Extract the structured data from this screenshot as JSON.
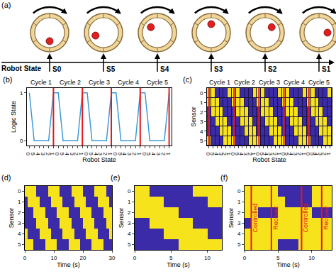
{
  "panel_a": {
    "panel": "(a)",
    "states": [
      "S0",
      "S5",
      "S4",
      "S3",
      "S2",
      "S1"
    ],
    "axis_label": "Robot State"
  },
  "chart_data": [
    {
      "panel": "(b)",
      "type": "line",
      "categories": [
        "0",
        "5",
        "4",
        "3",
        "2",
        "1",
        "0",
        "5",
        "4",
        "3",
        "2",
        "1",
        "0",
        "5",
        "4",
        "3",
        "2",
        "1",
        "0",
        "5",
        "4",
        "3",
        "2",
        "1",
        "0",
        "5",
        "4",
        "3",
        "2",
        "1"
      ],
      "values": [
        1,
        0,
        0,
        0,
        0,
        1,
        1,
        0,
        0,
        0,
        0,
        1,
        1,
        0,
        0,
        0,
        0,
        1,
        1,
        0,
        0,
        0,
        0,
        1,
        1,
        0,
        0,
        0,
        0,
        1
      ],
      "color": "#3d9bd8",
      "ylim": [
        -0.1,
        1.1
      ],
      "yticks": [
        0,
        1
      ],
      "x_label": "Robot State",
      "y_label": "Logic State",
      "annotations": [
        "Cycle 1",
        "Cycle 2",
        "Cycle 3",
        "Cycle 4",
        "Cycle 5"
      ],
      "vlines": [
        5,
        11,
        17,
        23,
        29
      ]
    },
    {
      "panel": "(c)",
      "type": "heatmap",
      "categories": [
        "0",
        "5",
        "4",
        "3",
        "2",
        "1",
        "0",
        "5",
        "4",
        "3",
        "2",
        "1",
        "0",
        "5",
        "4",
        "3",
        "2",
        "1",
        "0",
        "5",
        "4",
        "3",
        "2",
        "1",
        "0",
        "5",
        "4",
        "3",
        "2",
        "1"
      ],
      "y": [
        0,
        1,
        2,
        3,
        4,
        5
      ],
      "ylim": [
        5.5,
        -0.5
      ],
      "yticks": [
        0,
        1,
        2,
        3,
        4,
        5
      ],
      "z": [
        [
          1,
          1,
          0,
          0,
          0,
          1,
          1,
          1,
          0,
          0,
          0,
          1,
          1,
          1,
          0,
          0,
          0,
          1,
          1,
          1,
          0,
          0,
          0,
          1,
          1,
          1,
          0,
          0,
          0,
          1
        ],
        [
          1,
          1,
          1,
          0,
          0,
          0,
          1,
          1,
          1,
          0,
          0,
          0,
          1,
          1,
          1,
          0,
          0,
          0,
          1,
          1,
          1,
          0,
          0,
          0,
          1,
          1,
          1,
          0,
          0,
          0
        ],
        [
          0,
          1,
          1,
          1,
          0,
          0,
          0,
          1,
          1,
          1,
          0,
          0,
          0,
          1,
          1,
          1,
          0,
          0,
          0,
          1,
          1,
          1,
          0,
          0,
          0,
          1,
          1,
          1,
          0,
          0
        ],
        [
          0,
          0,
          1,
          1,
          1,
          0,
          0,
          0,
          1,
          1,
          1,
          0,
          0,
          0,
          1,
          1,
          1,
          0,
          0,
          0,
          1,
          1,
          1,
          0,
          0,
          0,
          1,
          1,
          1,
          0
        ],
        [
          0,
          0,
          0,
          1,
          1,
          1,
          0,
          0,
          0,
          1,
          1,
          1,
          0,
          0,
          0,
          1,
          1,
          1,
          0,
          0,
          0,
          1,
          1,
          1,
          0,
          0,
          0,
          1,
          1,
          1
        ],
        [
          1,
          0,
          0,
          0,
          1,
          1,
          1,
          0,
          0,
          0,
          1,
          1,
          1,
          0,
          0,
          0,
          1,
          1,
          1,
          0,
          0,
          0,
          1,
          1,
          1,
          0,
          0,
          0,
          1,
          1
        ]
      ],
      "zlim": [
        0,
        1
      ],
      "x_label": "Robot State",
      "y_label": "Sensor",
      "annotations": [
        "Cycle 1",
        "Cycle 2",
        "Cycle 3",
        "Cycle 4",
        "Cycle 5"
      ],
      "vlines": [
        0,
        6,
        12,
        18,
        24
      ]
    },
    {
      "panel": "(d)",
      "type": "heatmap",
      "x": [
        0.5,
        1.5,
        2.5,
        3.5,
        4.5,
        5.5,
        6.5,
        7.5,
        8.5,
        9.5,
        10.5,
        11.5,
        12.5,
        13.5,
        14.5,
        15.5,
        16.5,
        17.5,
        18.5,
        19.5,
        20.5,
        21.5,
        22.5,
        23.5,
        24.5,
        25.5,
        26.5,
        27.5,
        28.5,
        29.5
      ],
      "xlim": [
        0,
        30
      ],
      "xticks": [
        0,
        10,
        20,
        30
      ],
      "y": [
        0,
        1,
        2,
        3,
        4,
        5
      ],
      "ylim": [
        5.5,
        -0.5
      ],
      "yticks": [
        0,
        1,
        2,
        3,
        4,
        5
      ],
      "z": [
        [
          1,
          1,
          1,
          1,
          0,
          0,
          0,
          0,
          1,
          1,
          1,
          1,
          0,
          0,
          0,
          0,
          1,
          1,
          1,
          1,
          0,
          0,
          0,
          0,
          1,
          1,
          1,
          1,
          0,
          0
        ],
        [
          0,
          1,
          1,
          1,
          1,
          0,
          0,
          0,
          0,
          1,
          1,
          1,
          1,
          0,
          0,
          0,
          0,
          1,
          1,
          1,
          1,
          0,
          0,
          0,
          0,
          1,
          1,
          1,
          1,
          0
        ],
        [
          0,
          0,
          0,
          1,
          1,
          1,
          1,
          0,
          0,
          0,
          0,
          1,
          1,
          1,
          1,
          0,
          0,
          0,
          0,
          1,
          1,
          1,
          1,
          0,
          0,
          0,
          0,
          1,
          1,
          1
        ],
        [
          0,
          0,
          0,
          0,
          1,
          1,
          1,
          1,
          0,
          0,
          0,
          0,
          1,
          1,
          1,
          1,
          0,
          0,
          0,
          0,
          1,
          1,
          1,
          1,
          0,
          0,
          0,
          0,
          1,
          1
        ],
        [
          1,
          0,
          0,
          0,
          0,
          1,
          1,
          1,
          1,
          0,
          0,
          0,
          0,
          1,
          1,
          1,
          1,
          0,
          0,
          0,
          0,
          1,
          1,
          1,
          1,
          0,
          0,
          0,
          0,
          1
        ],
        [
          1,
          1,
          1,
          0,
          0,
          0,
          0,
          1,
          1,
          1,
          1,
          0,
          0,
          0,
          0,
          1,
          1,
          1,
          1,
          0,
          0,
          0,
          0,
          1,
          1,
          1,
          1,
          0,
          0,
          0
        ]
      ],
      "zlim": [
        0,
        1
      ],
      "x_label": "Time (s)",
      "y_label": "Sensor"
    },
    {
      "panel": "(e)",
      "type": "heatmap",
      "x": [
        0.5,
        1.5,
        2.5,
        3.5,
        4.5,
        5.5,
        6.5,
        7.5,
        8.5,
        9.5,
        10.5,
        11.5
      ],
      "xlim": [
        0,
        12
      ],
      "xticks": [
        0,
        5,
        10
      ],
      "y": [
        0,
        1,
        2,
        3,
        4,
        5
      ],
      "ylim": [
        5.5,
        -0.5
      ],
      "yticks": [
        0,
        1,
        2,
        3,
        4,
        5
      ],
      "z": [
        [
          1,
          1,
          0,
          0,
          0,
          0,
          0,
          0,
          1,
          1,
          1,
          1
        ],
        [
          1,
          1,
          1,
          1,
          0,
          0,
          0,
          0,
          0,
          0,
          1,
          1
        ],
        [
          1,
          1,
          1,
          1,
          1,
          1,
          0,
          0,
          0,
          0,
          0,
          0
        ],
        [
          0,
          0,
          1,
          1,
          1,
          1,
          1,
          1,
          0,
          0,
          0,
          0
        ],
        [
          0,
          0,
          0,
          0,
          1,
          1,
          1,
          1,
          1,
          1,
          0,
          0
        ],
        [
          0,
          0,
          0,
          0,
          0,
          0,
          1,
          1,
          1,
          1,
          1,
          1
        ]
      ],
      "zlim": [
        0,
        1
      ],
      "x_label": "Time (s)",
      "y_label": "Sensor"
    },
    {
      "panel": "(f)",
      "type": "heatmap",
      "x": [
        0.5,
        1.5,
        2.5,
        3.5,
        4.5,
        5.5,
        6.5,
        7.5,
        8.5,
        9.5,
        10.5,
        11.5,
        12.5
      ],
      "xlim": [
        0,
        13
      ],
      "xticks": [
        0,
        5,
        10
      ],
      "y": [
        0,
        1,
        2,
        3,
        4,
        5
      ],
      "ylim": [
        5.5,
        -0.5
      ],
      "yticks": [
        0,
        1,
        2,
        3,
        4,
        5
      ],
      "z": [
        [
          1,
          1,
          1,
          1,
          1,
          0,
          0,
          0,
          0,
          0,
          1,
          1,
          1
        ],
        [
          1,
          1,
          1,
          1,
          1,
          1,
          0,
          0,
          0,
          0,
          1,
          1,
          1
        ],
        [
          1,
          1,
          0,
          0,
          0,
          1,
          1,
          1,
          1,
          1,
          0,
          0,
          0
        ],
        [
          0,
          1,
          1,
          1,
          1,
          1,
          1,
          1,
          1,
          1,
          1,
          1,
          1
        ],
        [
          1,
          1,
          1,
          1,
          1,
          1,
          1,
          1,
          1,
          1,
          1,
          1,
          1
        ],
        [
          1,
          1,
          1,
          1,
          1,
          0,
          0,
          0,
          1,
          1,
          1,
          1,
          1
        ]
      ],
      "zlim": [
        0,
        1
      ],
      "x_label": "Time (s)",
      "y_label": "Sensor",
      "annotations": [
        {
          "x": 1,
          "text": "Controlled"
        },
        {
          "x": 4,
          "text": "Recover"
        },
        {
          "x": 8.5,
          "text": "Controlled"
        },
        {
          "x": 11.5,
          "text": "Recover"
        }
      ]
    }
  ]
}
